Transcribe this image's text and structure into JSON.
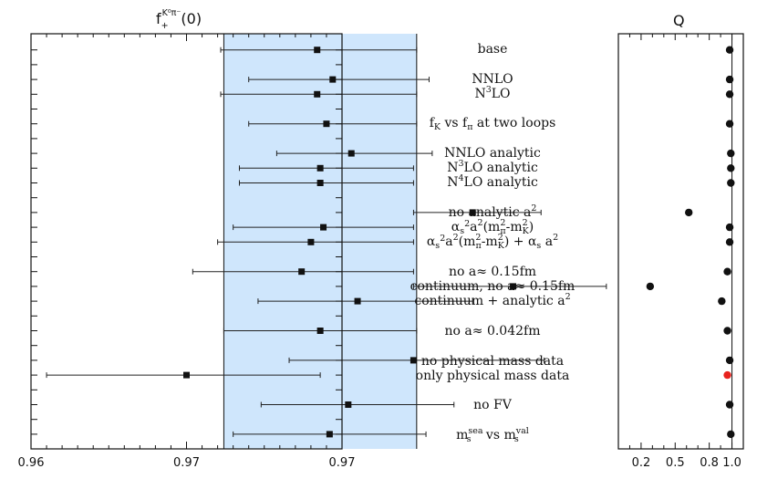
{
  "chart_data": [
    {
      "type": "scatter",
      "title": "f+K0π(0)",
      "title_parts": {
        "base": "f",
        "sub": "+",
        "sup": "K⁰π⁻",
        "tail": "(0)"
      },
      "xlim": [
        0.96,
        0.97
      ],
      "x_tick_labels": [
        "0.96",
        "0.97",
        "0.97"
      ],
      "band": [
        0.9662,
        0.9724
      ],
      "band_color": "#cfe6fc",
      "marker_color": "#111111",
      "rows": [
        1,
        3,
        4,
        6,
        8,
        9,
        10,
        12,
        13,
        14,
        16,
        17,
        18,
        20,
        22,
        23,
        25,
        27
      ],
      "points": [
        {
          "x": 0.9692,
          "lo": 0.9661,
          "hi": 0.9724
        },
        {
          "x": 0.9697,
          "lo": 0.967,
          "hi": 0.9728
        },
        {
          "x": 0.9692,
          "lo": 0.9661,
          "hi": 0.9724
        },
        {
          "x": 0.9695,
          "lo": 0.967,
          "hi": 0.9724
        },
        {
          "x": 0.9703,
          "lo": 0.9679,
          "hi": 0.9729
        },
        {
          "x": 0.9693,
          "lo": 0.9667,
          "hi": 0.9723
        },
        {
          "x": 0.9693,
          "lo": 0.9667,
          "hi": 0.9723
        },
        {
          "x": 0.9742,
          "lo": 0.9723,
          "hi": 0.9764
        },
        {
          "x": 0.9694,
          "lo": 0.9665,
          "hi": 0.9723
        },
        {
          "x": 0.969,
          "lo": 0.966,
          "hi": 0.9723
        },
        {
          "x": 0.9687,
          "lo": 0.9652,
          "hi": 0.9723
        },
        {
          "x": 0.9755,
          "lo": 0.9723,
          "hi": 0.9785
        },
        {
          "x": 0.9705,
          "lo": 0.9673,
          "hi": 0.9742
        },
        {
          "x": 0.9693,
          "lo": 0.9662,
          "hi": 0.9724
        },
        {
          "x": 0.9723,
          "lo": 0.9683,
          "hi": 0.9765
        },
        {
          "x": 0.965,
          "lo": 0.9605,
          "hi": 0.9693
        },
        {
          "x": 0.9702,
          "lo": 0.9674,
          "hi": 0.9736
        },
        {
          "x": 0.9696,
          "lo": 0.9665,
          "hi": 0.9727
        }
      ]
    },
    {
      "type": "scatter",
      "title": "Q",
      "xlim": [
        0,
        1.1
      ],
      "x_ticks": [
        0.2,
        0.5,
        0.8,
        1.0
      ],
      "x_tick_labels": [
        "0.2",
        "0.5",
        "0.8",
        "1.0"
      ],
      "marker_color": "#111111",
      "highlight_color": "#e8231e",
      "values": [
        0.98,
        0.98,
        0.98,
        0.98,
        0.99,
        0.99,
        0.99,
        0.62,
        0.98,
        0.98,
        0.96,
        0.28,
        0.91,
        0.96,
        0.98,
        0.96,
        0.98,
        0.99
      ],
      "highlight_index": 15
    }
  ],
  "labels": {
    "base": "base",
    "nnlo": "NNLO",
    "n3lo": "LO",
    "fk": "f",
    "fk_sub_k": "K",
    "fk_mid": " vs f",
    "fk_sub_pi": "π",
    "fk_tail": " at two loops",
    "nnlo_an": "NNLO analytic",
    "n3lo_an": "LO analytic",
    "n4lo_an": "LO analytic",
    "no_an": "no analytic a",
    "alpha": "α",
    "alpha_s": "s",
    "a2": "a",
    "m": "m",
    "pi": "π",
    "k": "K",
    "dash": "-",
    "plus_alpha": " + α",
    "no015": "no a≈ 0.15fm",
    "cont_no015": "continuum, no a≈ 0.15fm",
    "cont_an": "continuum + analytic a",
    "no0042": "no a≈ 0.042fm",
    "no_phys": "no physical mass data",
    "only_phys": "only physical mass data",
    "nofv": "no FV",
    "msea": "sea",
    "vs": " vs  ",
    "mval": "val",
    "n": "N",
    "s": "s",
    "two": "2",
    "three": "3",
    "four": "4",
    "open": "(",
    "close": ")",
    "open_paren": "("
  }
}
